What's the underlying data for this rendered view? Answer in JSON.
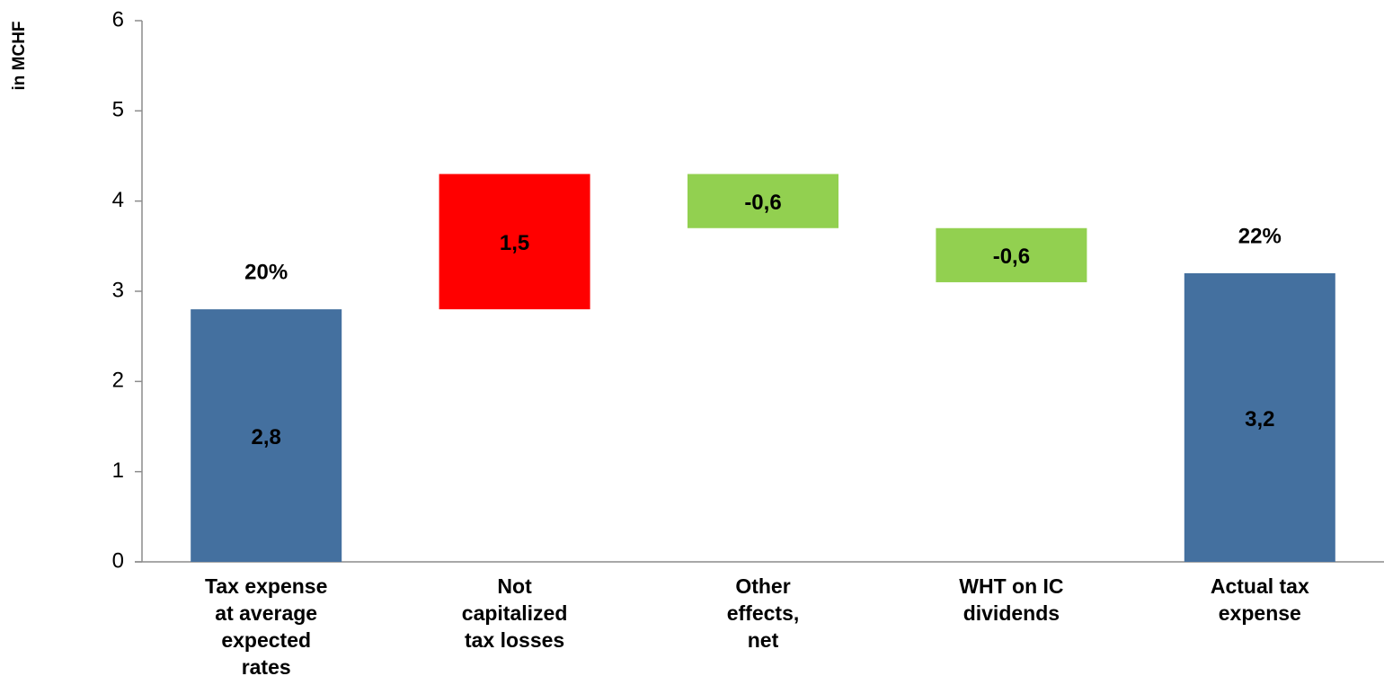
{
  "chart_data": {
    "type": "waterfall",
    "y_label": "in MCHF",
    "categories": [
      "Tax expense\nat average\nexpected\nrates",
      "Not\ncapitalized\ntax losses",
      "Other\neffects,\nnet",
      "WHT on IC\ndividends",
      "Actual tax\nexpense"
    ],
    "values": [
      2.8,
      1.5,
      -0.6,
      -0.6,
      3.2
    ],
    "value_labels": [
      "2,8",
      "1,5",
      "-0,6",
      "-0,6",
      "3,2"
    ],
    "measure": [
      "total",
      "relative",
      "relative",
      "relative",
      "total"
    ],
    "colors": [
      "#44709f",
      "#ff0000",
      "#92d050",
      "#92d050",
      "#44709f"
    ],
    "top_labels": [
      "20%",
      null,
      null,
      null,
      "22%"
    ],
    "ylim": [
      0,
      6
    ],
    "yticks": [
      0,
      1,
      2,
      3,
      4,
      5,
      6
    ]
  }
}
